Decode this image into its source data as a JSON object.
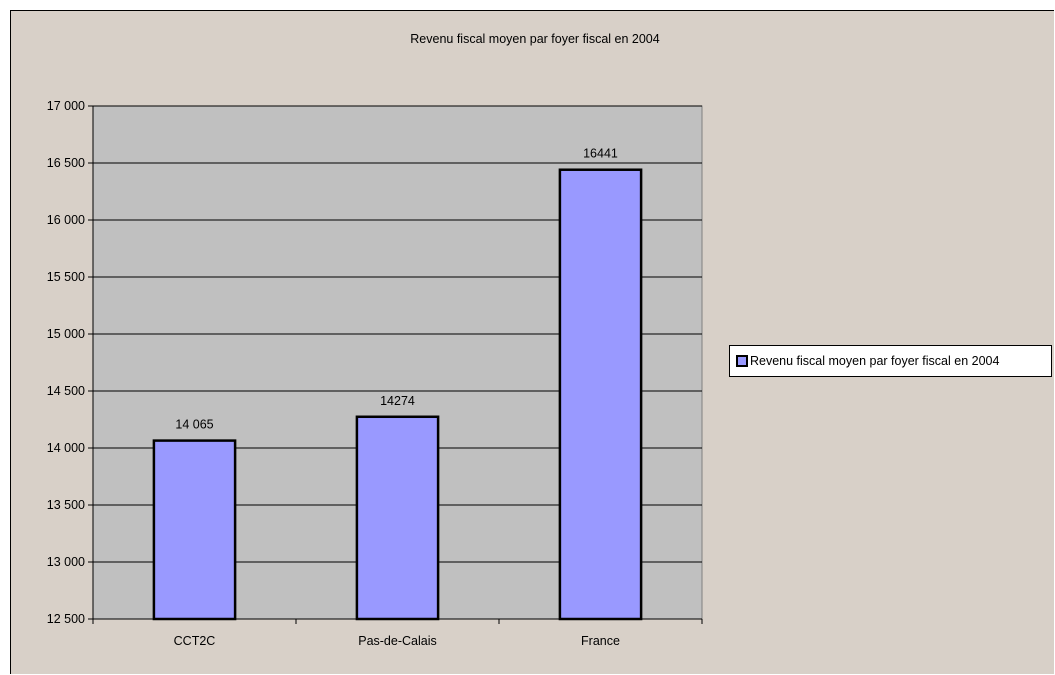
{
  "chart_data": {
    "type": "bar",
    "title": "Revenu fiscal moyen par foyer fiscal en 2004",
    "categories": [
      "CCT2C",
      "Pas-de-Calais",
      "France"
    ],
    "series": [
      {
        "name": "Revenu fiscal moyen par foyer fiscal en 2004",
        "values": [
          14065,
          14274,
          16441
        ],
        "value_labels": [
          "14 065",
          "14274",
          "16441"
        ]
      }
    ],
    "ylim": [
      12500,
      17000
    ],
    "yticks": [
      {
        "value": 12500,
        "label": "12 500"
      },
      {
        "value": 13000,
        "label": "13 000"
      },
      {
        "value": 13500,
        "label": "13 500"
      },
      {
        "value": 14000,
        "label": "14 000"
      },
      {
        "value": 14500,
        "label": "14 500"
      },
      {
        "value": 15000,
        "label": "15 000"
      },
      {
        "value": 15500,
        "label": "15 500"
      },
      {
        "value": 16000,
        "label": "16 000"
      },
      {
        "value": 16500,
        "label": "16 500"
      },
      {
        "value": 17000,
        "label": "17 000"
      }
    ],
    "xlabel": "",
    "ylabel": "",
    "grid": true,
    "legend_position": "right",
    "colors": {
      "bar": "#9999ff",
      "plot_background": "#c0c0c0",
      "chart_background": "#d8d0c8"
    }
  }
}
